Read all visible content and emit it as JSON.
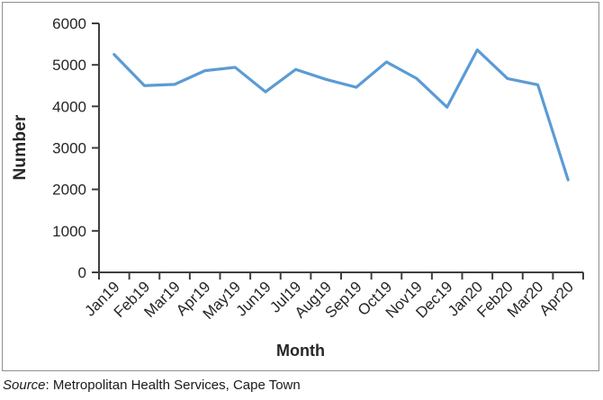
{
  "chart_data": {
    "type": "line",
    "title": "",
    "xlabel": "Month",
    "ylabel": "Number",
    "categories": [
      "Jan19",
      "Feb19",
      "Mar19",
      "Apr19",
      "May19",
      "Jun19",
      "Jul19",
      "Aug19",
      "Sep19",
      "Oct19",
      "Nov19",
      "Dec19",
      "Jan20",
      "Feb20",
      "Mar20",
      "Apr20"
    ],
    "series": [
      {
        "name": "Number",
        "values": [
          5250,
          4500,
          4530,
          4860,
          4940,
          4350,
          4890,
          4650,
          4460,
          5070,
          4670,
          3980,
          5360,
          4670,
          4520,
          2230
        ]
      }
    ],
    "ylim": [
      0,
      6000
    ],
    "yticks": [
      0,
      1000,
      2000,
      3000,
      4000,
      5000,
      6000
    ],
    "grid": false,
    "legend": "none",
    "line_color": "#5B9BD5",
    "axis_color": "#3F3F3F",
    "text_color": "#262626",
    "frame_color": "#8F8F8F"
  },
  "source": {
    "prefix": "Source",
    "text": ": Metropolitan Health Services, Cape Town"
  }
}
